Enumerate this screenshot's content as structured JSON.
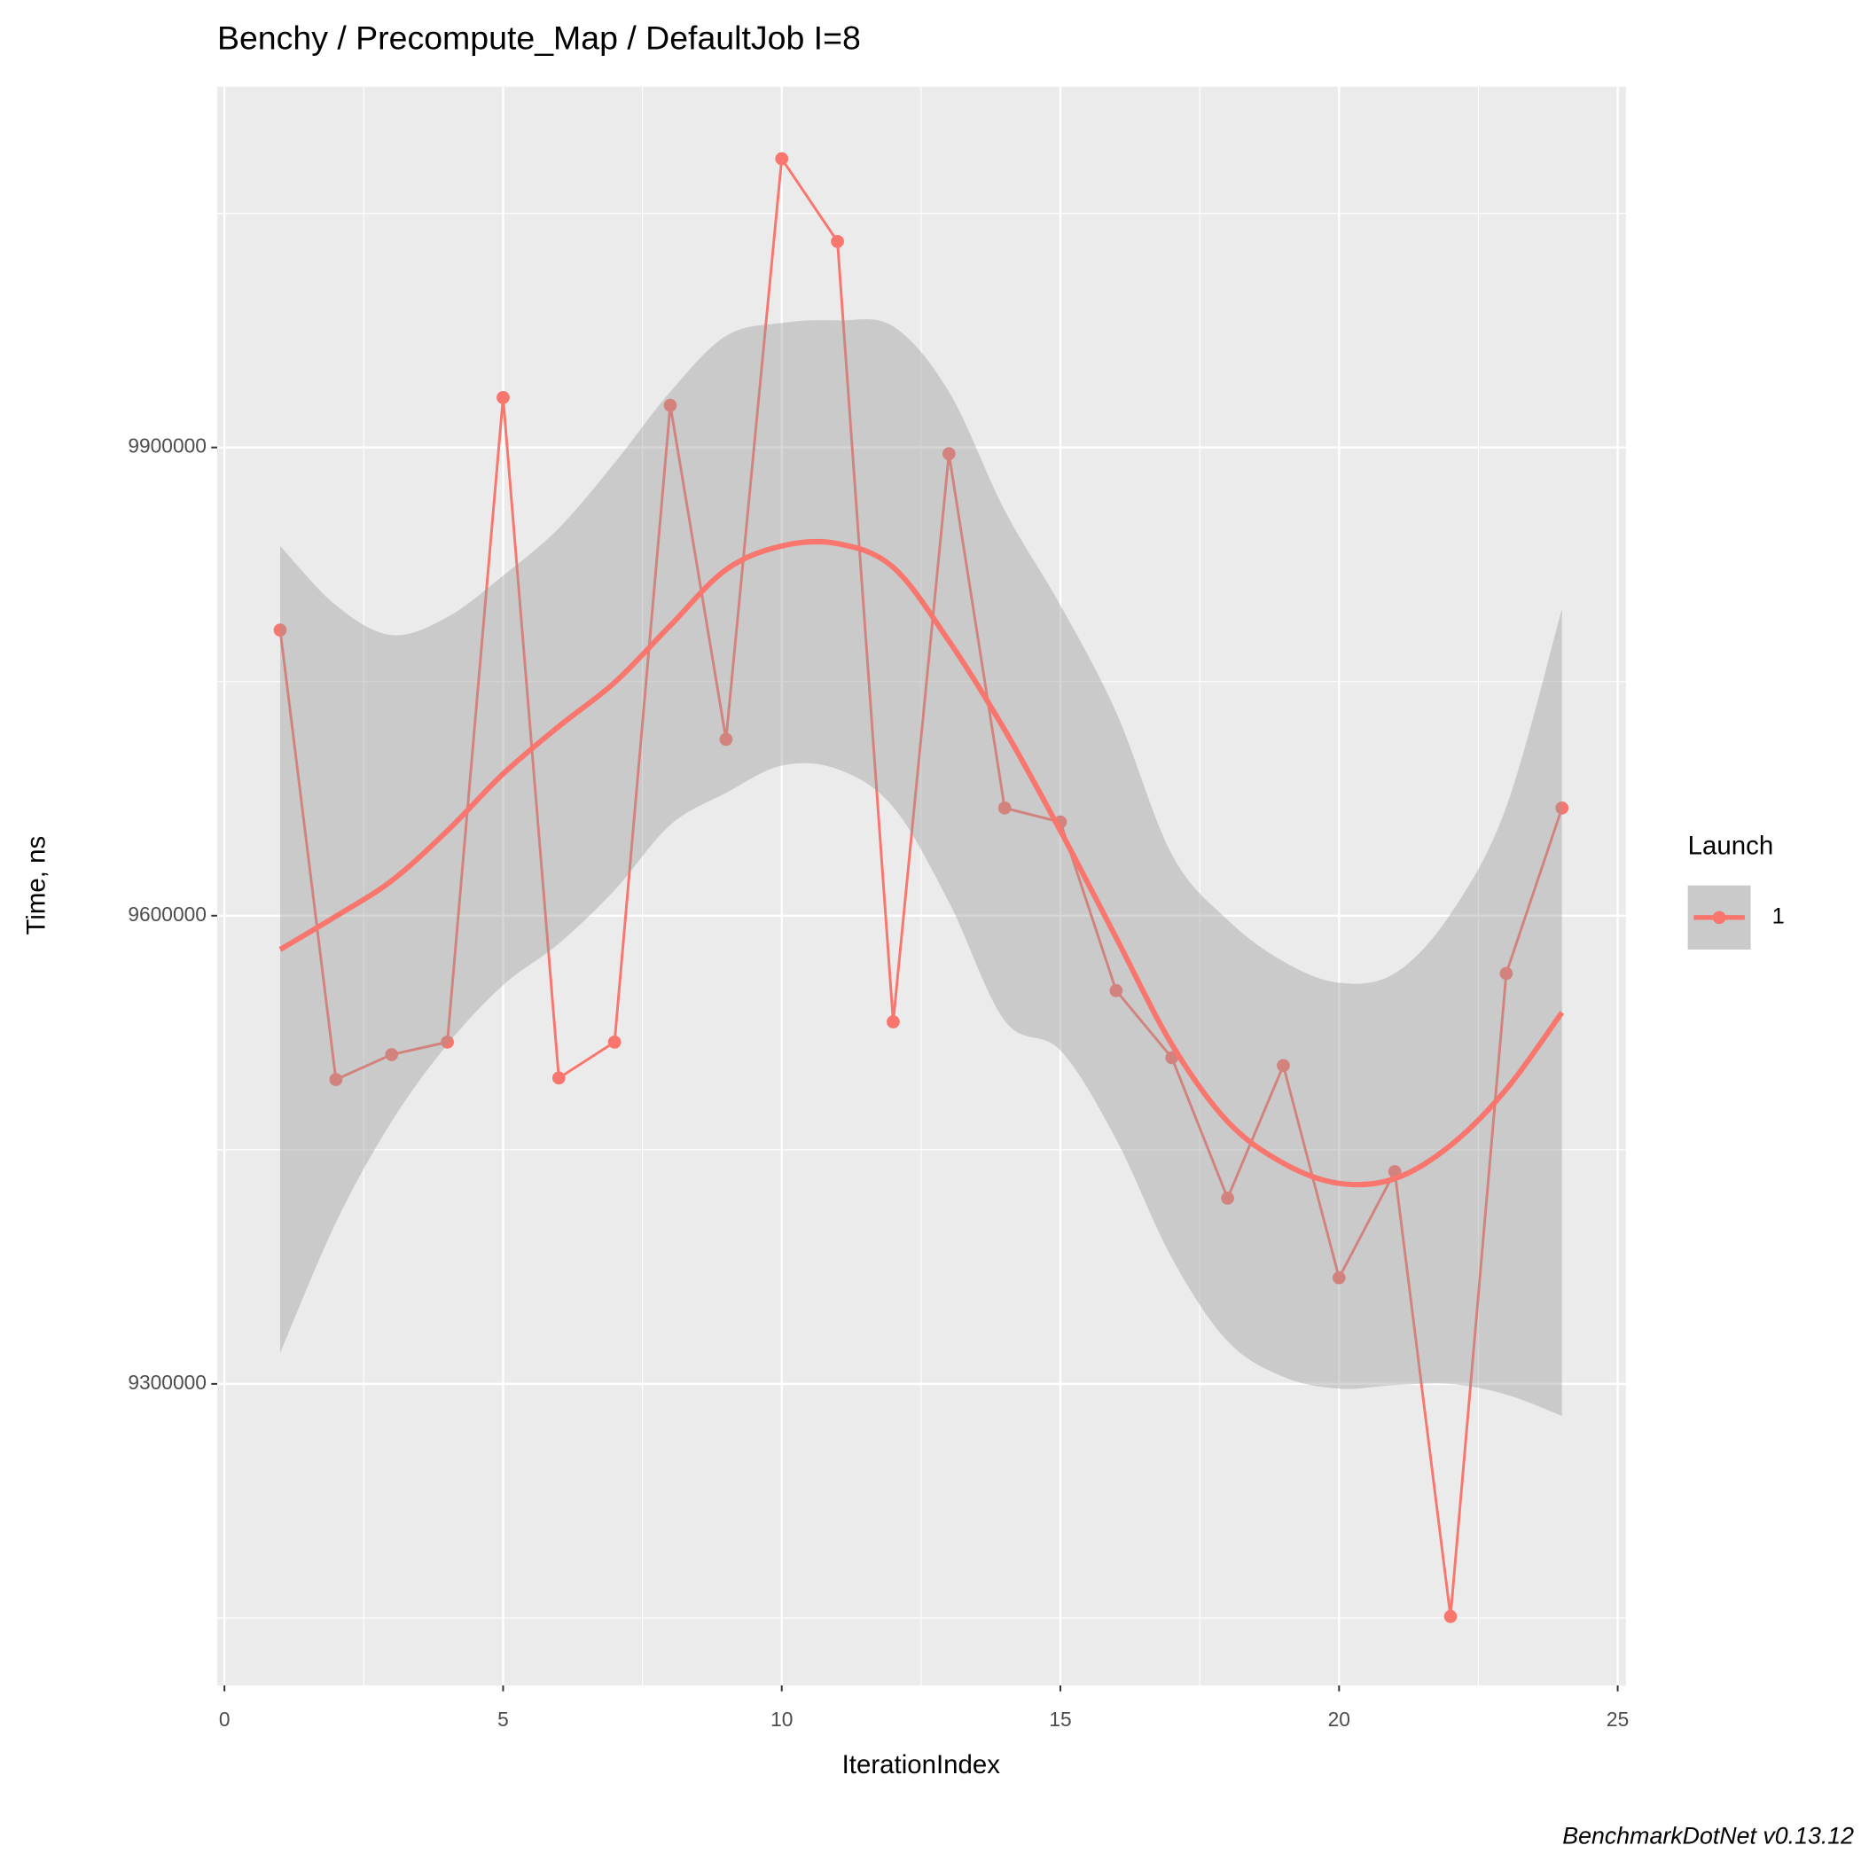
{
  "chart_data": {
    "type": "line",
    "title": "Benchy / Precompute_Map / DefaultJob I=8",
    "x_label": "IterationIndex",
    "y_label": "Time, ns",
    "caption": "BenchmarkDotNet v0.13.12",
    "legend_title": "Launch",
    "legend_position": "right",
    "grid": true,
    "x": [
      1,
      2,
      3,
      4,
      5,
      6,
      7,
      8,
      9,
      10,
      11,
      12,
      13,
      14,
      15,
      16,
      17,
      18,
      19,
      20,
      21,
      22,
      23,
      24
    ],
    "series": [
      {
        "name": "1",
        "color": "#F8766D",
        "values": [
          9783000,
          9495000,
          9511000,
          9519000,
          9932000,
          9496000,
          9519000,
          9927000,
          9713000,
          10085000,
          10032000,
          9532000,
          9896000,
          9669000,
          9660000,
          9552000,
          9509000,
          9419000,
          9504000,
          9368000,
          9436000,
          9151000,
          9563000,
          9669000
        ],
        "smooth": [
          9578300,
          9599600,
          9622400,
          9654400,
          9690900,
          9721300,
          9749400,
          9785900,
          9821700,
          9836900,
          9838400,
          9823200,
          9776000,
          9719000,
          9654400,
          9585900,
          9517500,
          9468100,
          9441400,
          9428500,
          9431500,
          9452800,
          9488700,
          9538000
        ],
        "lower": [
          9319800,
          9403400,
          9468100,
          9517500,
          9555500,
          9582100,
          9616300,
          9658200,
          9678700,
          9696200,
          9693900,
          9669600,
          9608700,
          9532700,
          9513700,
          9456700,
          9380600,
          9327400,
          9304560,
          9296960,
          9299240,
          9300000,
          9293160,
          9279460
        ],
        "upper": [
          9836900,
          9798900,
          9779800,
          9791300,
          9817900,
          9848300,
          9890100,
          9935700,
          9971500,
          9979800,
          9981400,
          9977600,
          9935700,
          9859700,
          9798900,
          9730400,
          9639200,
          9597300,
          9570700,
          9557000,
          9563100,
          9601100,
          9669600,
          9796600
        ]
      }
    ],
    "xlim": [
      -0.13,
      25.15
    ],
    "ylim": [
      9106800,
      10131200
    ],
    "xticks": [
      0,
      5,
      10,
      15,
      20,
      25
    ],
    "yticks": [
      9300000,
      9600000,
      9900000
    ]
  }
}
